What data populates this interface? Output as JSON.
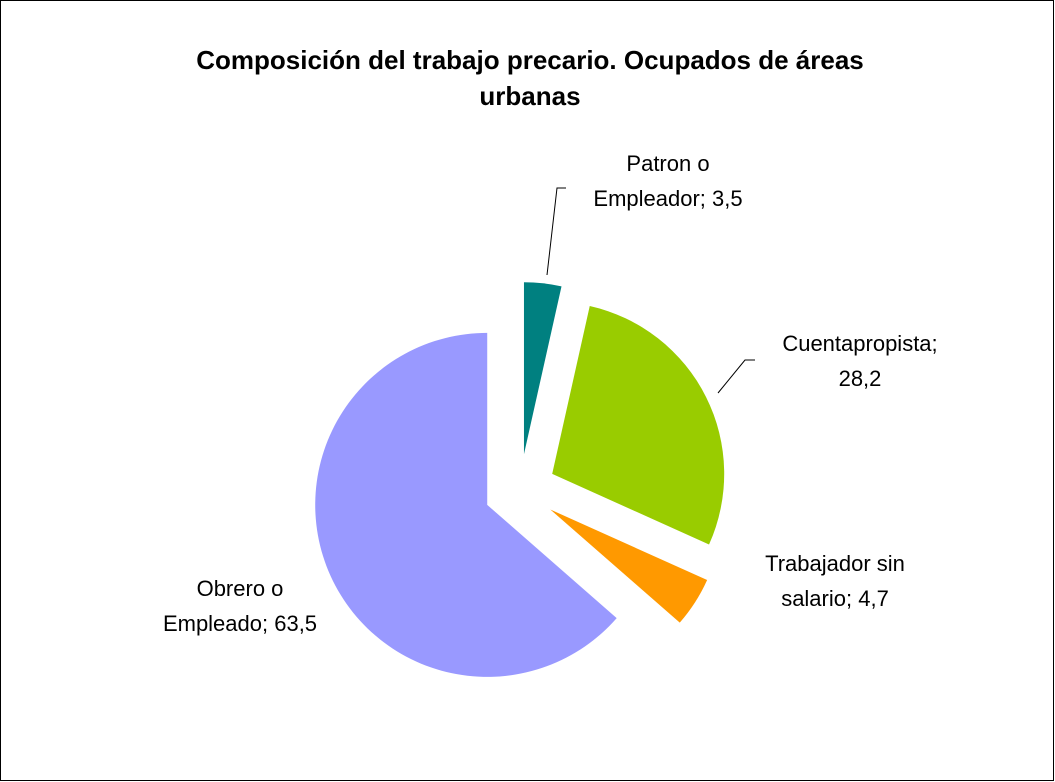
{
  "chart_data": {
    "type": "pie",
    "title": "Composición del trabajo precario. Ocupados de áreas urbanas",
    "categories": [
      "Patron o Empleador",
      "Cuentapropista",
      "Trabajador sin salario",
      "Obrero o Empleado"
    ],
    "values": [
      3.5,
      28.2,
      4.7,
      63.5
    ],
    "value_labels": [
      "Patron o Empleador; 3,5",
      "Cuentapropista; 28,2",
      "Trabajador sin salario; 4,7",
      "Obrero o Empleado; 63,5"
    ],
    "colors": [
      "#008080",
      "#99cc00",
      "#ff9900",
      "#9999ff"
    ],
    "exploded": true
  }
}
